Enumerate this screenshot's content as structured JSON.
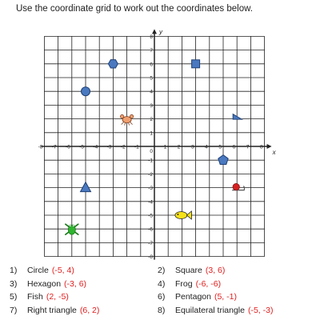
{
  "instruction": "Use the coordinate grid to work out the coordinates below.",
  "grid": {
    "x_axis_label": "x",
    "y_axis_label": "y",
    "x_range": [
      -8,
      8
    ],
    "y_range": [
      -8,
      8
    ],
    "colors": {
      "grid": "#222222",
      "fill": "#4a79c0",
      "answer": "#e02020"
    }
  },
  "shapes": [
    {
      "name": "circle",
      "x": -5,
      "y": 4,
      "icon": "circle-icon"
    },
    {
      "name": "square",
      "x": 3,
      "y": 6,
      "icon": "square-icon"
    },
    {
      "name": "hexagon",
      "x": -3,
      "y": 6,
      "icon": "hexagon-icon"
    },
    {
      "name": "frog",
      "x": -6,
      "y": -6,
      "icon": "frog-icon"
    },
    {
      "name": "fish",
      "x": 2,
      "y": -5,
      "icon": "fish-icon"
    },
    {
      "name": "pentagon",
      "x": 5,
      "y": -1,
      "icon": "pentagon-icon"
    },
    {
      "name": "right-triangle",
      "x": 6,
      "y": 2,
      "icon": "right-triangle-icon"
    },
    {
      "name": "equilateral-triangle",
      "x": -5,
      "y": -3,
      "icon": "triangle-icon"
    },
    {
      "name": "crab",
      "x": -2,
      "y": 2,
      "icon": "crab-icon"
    },
    {
      "name": "snail",
      "x": 6,
      "y": -3,
      "icon": "snail-icon"
    }
  ],
  "answers": [
    {
      "num": "1)",
      "shape": "Circle",
      "coord": "(-5, 4)"
    },
    {
      "num": "2)",
      "shape": "Square",
      "coord": "(3, 6)"
    },
    {
      "num": "3)",
      "shape": "Hexagon",
      "coord": "(-3, 6)"
    },
    {
      "num": "4)",
      "shape": "Frog",
      "coord": "(-6, -6)"
    },
    {
      "num": "5)",
      "shape": "Fish",
      "coord": "(2, -5)"
    },
    {
      "num": "6)",
      "shape": "Pentagon",
      "coord": "(5, -1)"
    },
    {
      "num": "7)",
      "shape": "Right triangle",
      "coord": "(6, 2)"
    },
    {
      "num": "8)",
      "shape": "Equilateral triangle",
      "coord": "(-5, -3)"
    }
  ]
}
